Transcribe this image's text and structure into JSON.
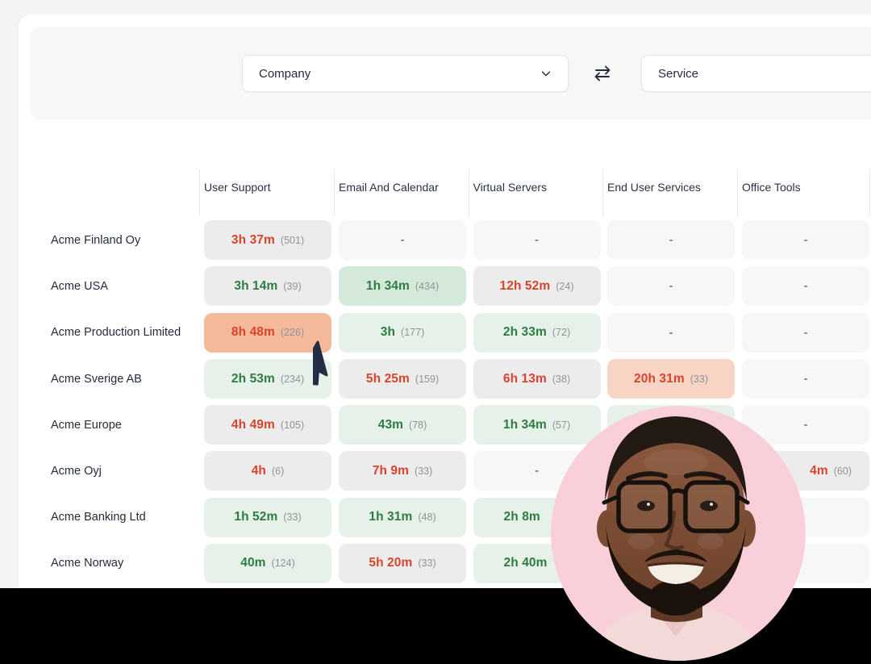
{
  "toolbar": {
    "company_select": {
      "value": "Company",
      "icon": "chevron-down-icon"
    },
    "swap_button": {
      "icon": "swap-horizontal-icon"
    },
    "service_select": {
      "value": "Service"
    }
  },
  "matrix": {
    "columns": [
      "User Support",
      "Email And Calendar",
      "Virtual Servers",
      "End User Services",
      "Office Tools"
    ],
    "rows": [
      {
        "company": "Acme Finland Oy",
        "cells": [
          {
            "v": "3h 37m",
            "n": "(501)",
            "bg": "gray",
            "fg": "red"
          },
          {
            "v": "-",
            "bg": "empty",
            "fg": "dash"
          },
          {
            "v": "-",
            "bg": "empty",
            "fg": "dash"
          },
          {
            "v": "-",
            "bg": "empty",
            "fg": "dash"
          },
          {
            "v": "-",
            "bg": "empty",
            "fg": "dash"
          }
        ]
      },
      {
        "company": "Acme USA",
        "cells": [
          {
            "v": "3h 14m",
            "n": "(39)",
            "bg": "gray",
            "fg": "green"
          },
          {
            "v": "1h 34m",
            "n": "(434)",
            "bg": "greenMed",
            "fg": "green"
          },
          {
            "v": "12h 52m",
            "n": "(24)",
            "bg": "gray",
            "fg": "red"
          },
          {
            "v": "-",
            "bg": "empty",
            "fg": "dash"
          },
          {
            "v": "-",
            "bg": "empty",
            "fg": "dash"
          }
        ]
      },
      {
        "company": "Acme Production Limited",
        "cells": [
          {
            "v": "8h 48m",
            "n": "(226)",
            "bg": "salmonStrong",
            "fg": "red"
          },
          {
            "v": "3h",
            "n": "(177)",
            "bg": "greenLight",
            "fg": "green"
          },
          {
            "v": "2h 33m",
            "n": "(72)",
            "bg": "greenLight",
            "fg": "green"
          },
          {
            "v": "-",
            "bg": "empty",
            "fg": "dash"
          },
          {
            "v": "-",
            "bg": "empty",
            "fg": "dash"
          }
        ]
      },
      {
        "company": "Acme Sverige AB",
        "cells": [
          {
            "v": "2h 53m",
            "n": "(234)",
            "bg": "greenLight",
            "fg": "green"
          },
          {
            "v": "5h 25m",
            "n": "(159)",
            "bg": "gray",
            "fg": "red"
          },
          {
            "v": "6h 13m",
            "n": "(38)",
            "bg": "gray",
            "fg": "red"
          },
          {
            "v": "20h 31m",
            "n": "(33)",
            "bg": "salmonLight",
            "fg": "red"
          },
          {
            "v": "-",
            "bg": "empty",
            "fg": "dash"
          }
        ]
      },
      {
        "company": "Acme Europe",
        "cells": [
          {
            "v": "4h 49m",
            "n": "(105)",
            "bg": "gray",
            "fg": "red"
          },
          {
            "v": "43m",
            "n": "(78)",
            "bg": "greenLight",
            "fg": "green"
          },
          {
            "v": "1h 34m",
            "n": "(57)",
            "bg": "greenLight",
            "fg": "green"
          },
          {
            "v": "",
            "bg": "greenLight",
            "hidden": true
          },
          {
            "v": "-",
            "bg": "empty",
            "fg": "dash"
          }
        ]
      },
      {
        "company": "Acme Oyj",
        "cells": [
          {
            "v": "4h",
            "n": "(6)",
            "bg": "gray",
            "fg": "red"
          },
          {
            "v": "7h 9m",
            "n": "(33)",
            "bg": "gray",
            "fg": "red"
          },
          {
            "v": "-",
            "bg": "empty",
            "fg": "dash"
          },
          {
            "v": "",
            "bg": "empty",
            "hidden": true
          },
          {
            "v": "4m",
            "n": "(60)",
            "bg": "gray",
            "fg": "red",
            "align": "right"
          }
        ]
      },
      {
        "company": "Acme Banking Ltd",
        "cells": [
          {
            "v": "1h 52m",
            "n": "(33)",
            "bg": "greenLight",
            "fg": "green"
          },
          {
            "v": "1h 31m",
            "n": "(48)",
            "bg": "greenLight",
            "fg": "green"
          },
          {
            "v": "2h 8m",
            "bg": "greenLight",
            "fg": "green",
            "align": "left"
          },
          {
            "v": "",
            "bg": "empty",
            "hidden": true
          },
          {
            "v": "",
            "bg": "empty",
            "hidden": true
          }
        ]
      },
      {
        "company": "Acme Norway",
        "cells": [
          {
            "v": "40m",
            "n": "(124)",
            "bg": "greenLight",
            "fg": "green"
          },
          {
            "v": "5h 20m",
            "n": "(33)",
            "bg": "gray",
            "fg": "red"
          },
          {
            "v": "2h 40m",
            "bg": "greenLight",
            "fg": "green",
            "align": "left"
          },
          {
            "v": "",
            "bg": "empty",
            "hidden": true
          },
          {
            "v": "",
            "bg": "empty",
            "hidden": true
          }
        ]
      }
    ]
  },
  "colors": {
    "page_bg": "#f4f4f5",
    "card_bg": "#ffffff",
    "toolbar_bg": "#f7f7f8",
    "cell_bg": {
      "gray": "#ececec",
      "empty": "#f7f7f8",
      "greenLight": "#e6f1e9",
      "greenMed": "#d5e9db",
      "salmonStrong": "#f5b99c",
      "salmonLight": "#f8d4c5"
    },
    "text": {
      "red": "#d9432c",
      "green": "#2f7c41",
      "dash": "#3f4551",
      "dark": "#242b3a",
      "count": "#8e9499"
    },
    "photo_bg_pink": "#f9d0da",
    "bottom_bar": "#000000"
  },
  "photo": {
    "shape": "circle",
    "description": "portrait of smiling man with glasses, beard, pink shirt on pink background"
  },
  "cursor": {
    "type": "pointer-arrow",
    "color": "#232d45"
  }
}
